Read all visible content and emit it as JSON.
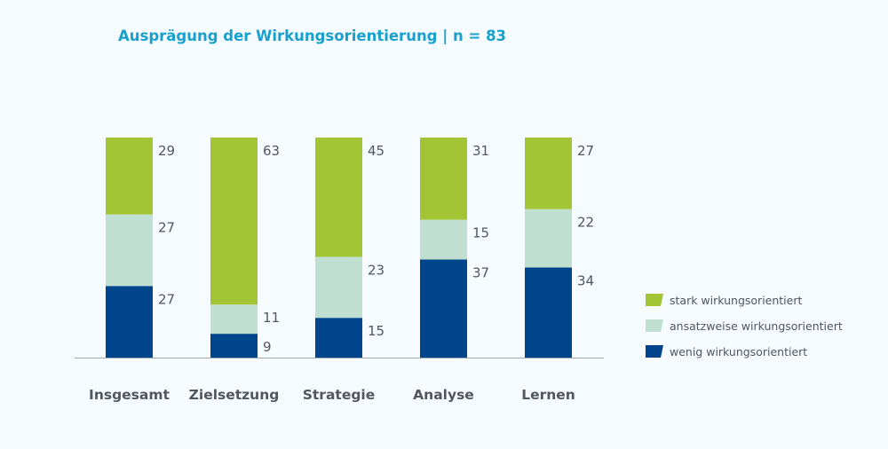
{
  "chart_data": {
    "type": "bar",
    "stacked": true,
    "normalized": true,
    "title": "Ausprägung der Wirkungsorientierung  |  n = 83",
    "xlabel": "",
    "ylabel": "",
    "ylim": [
      0,
      83
    ],
    "grid": false,
    "legend_position": "right",
    "categories": [
      "Insgesamt",
      "Zielsetzung",
      "Strategie",
      "Analyse",
      "Lernen"
    ],
    "series": [
      {
        "name": "wenig wirkungsorientiert",
        "color": "#00458c",
        "values": [
          27,
          9,
          15,
          37,
          34
        ]
      },
      {
        "name": "ansatzweise wirkungsorientiert",
        "color": "#bfe0d0",
        "values": [
          27,
          11,
          23,
          15,
          22
        ]
      },
      {
        "name": "stark wirkungsorientiert",
        "color": "#a3c535",
        "values": [
          29,
          63,
          45,
          31,
          27
        ]
      }
    ],
    "legend_order": [
      2,
      1,
      0
    ],
    "colors": {
      "title": "#1aa0cc",
      "text": "#555560",
      "axis": "#a0a8b0",
      "background": "#f5fbfe"
    }
  }
}
